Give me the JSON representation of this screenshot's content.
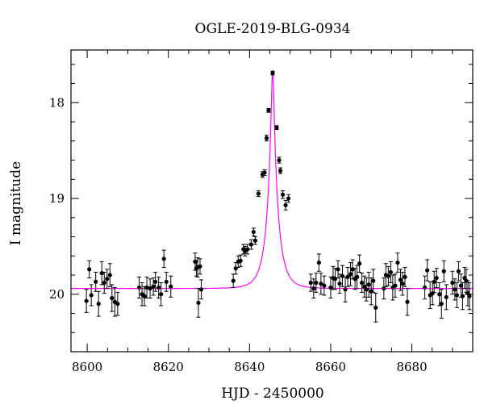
{
  "chart_data": {
    "type": "scatter",
    "title": "OGLE-2019-BLG-0934",
    "xlabel": "HJD - 2450000",
    "ylabel": "I magnitude",
    "xlim": [
      8596,
      8695
    ],
    "ylim": [
      20.6,
      17.45
    ],
    "y_inverted": true,
    "grid": false,
    "x_ticks": [
      8600,
      8620,
      8640,
      8660,
      8680
    ],
    "y_ticks": [
      18,
      19,
      20
    ],
    "colors": {
      "points": "#000000",
      "model": "#ff00ff",
      "axes": "#000000"
    },
    "model": {
      "t0": 8645.7,
      "peak_mag": 17.68,
      "baseline_mag": 19.94,
      "tE": 2.7
    },
    "series": [
      {
        "type": "scatter_errorbars",
        "x": [
          8599.8,
          8600.5,
          8601.0,
          8602.1,
          8602.8,
          8603.6,
          8604.2,
          8604.9,
          8605.6,
          8606.1,
          8606.8,
          8607.5,
          8612.8,
          8613.5,
          8614.1,
          8614.7,
          8615.5,
          8616.3,
          8616.8,
          8617.6,
          8618.2,
          8618.9,
          8619.5,
          8620.6,
          8626.6,
          8626.9,
          8627.2,
          8627.4,
          8627.8,
          8628.1,
          8636.0,
          8636.6,
          8637.2,
          8637.8,
          8638.5,
          8638.9,
          8639.5,
          8640.4,
          8641.0,
          8641.4,
          8642.2,
          8643.2,
          8643.7,
          8644.2,
          8644.7,
          8645.7,
          8646.7,
          8647.3,
          8647.6,
          8648.2,
          8648.9,
          8649.6,
          8655.1,
          8655.8,
          8656.4,
          8657.1,
          8657.6,
          8658.4,
          8660.0,
          8660.6,
          8661.1,
          8661.8,
          8662.2,
          8662.9,
          8663.6,
          8664.2,
          8664.9,
          8665.4,
          8666.0,
          8666.5,
          8667.1,
          8667.7,
          8668.3,
          8668.8,
          8669.4,
          8670.0,
          8670.5,
          8671.1,
          8673.1,
          8673.6,
          8674.2,
          8674.8,
          8675.3,
          8675.9,
          8676.5,
          8677.2,
          8677.7,
          8678.3,
          8678.9,
          8683.2,
          8683.8,
          8684.5,
          8685.1,
          8685.5,
          8686.1,
          8686.8,
          8687.3,
          8687.9,
          8688.5,
          8690.0,
          8690.6,
          8691.1,
          8691.5,
          8692.1,
          8692.5,
          8693.0,
          8693.4,
          8693.8,
          8694.2
        ],
        "y": [
          20.07,
          19.74,
          20.01,
          19.87,
          20.1,
          19.78,
          19.88,
          19.84,
          19.8,
          20.04,
          20.08,
          20.1,
          19.93,
          20.0,
          20.02,
          19.93,
          19.94,
          19.92,
          19.87,
          19.93,
          20.0,
          19.63,
          19.87,
          19.92,
          19.66,
          19.73,
          19.72,
          20.09,
          19.71,
          19.95,
          19.86,
          19.73,
          19.66,
          19.65,
          19.53,
          19.55,
          19.53,
          19.48,
          19.35,
          19.44,
          18.95,
          18.75,
          18.73,
          18.37,
          18.08,
          17.69,
          18.26,
          18.6,
          18.71,
          18.96,
          19.07,
          19.0,
          19.88,
          19.94,
          19.88,
          19.67,
          19.89,
          19.91,
          19.93,
          19.83,
          19.84,
          19.74,
          19.89,
          19.81,
          19.95,
          19.82,
          19.79,
          19.74,
          19.84,
          19.82,
          19.68,
          19.88,
          19.92,
          19.95,
          19.9,
          19.97,
          19.86,
          20.14,
          19.94,
          19.8,
          19.81,
          19.77,
          19.93,
          19.91,
          19.67,
          19.85,
          19.89,
          19.82,
          20.08,
          19.93,
          19.75,
          20.01,
          19.99,
          19.87,
          19.83,
          20.0,
          20.1,
          19.76,
          20.03,
          19.88,
          19.95,
          20.01,
          19.76,
          19.91,
          20.02,
          19.83,
          19.86,
          19.99,
          20.02
        ],
        "err": [
          0.12,
          0.09,
          0.11,
          0.1,
          0.13,
          0.12,
          0.11,
          0.1,
          0.12,
          0.14,
          0.15,
          0.12,
          0.11,
          0.12,
          0.1,
          0.11,
          0.1,
          0.09,
          0.1,
          0.11,
          0.12,
          0.09,
          0.1,
          0.11,
          0.09,
          0.08,
          0.1,
          0.15,
          0.08,
          0.1,
          0.07,
          0.06,
          0.06,
          0.06,
          0.05,
          0.05,
          0.05,
          0.05,
          0.04,
          0.04,
          0.03,
          0.03,
          0.03,
          0.03,
          0.02,
          0.02,
          0.02,
          0.03,
          0.03,
          0.04,
          0.05,
          0.04,
          0.09,
          0.1,
          0.1,
          0.09,
          0.11,
          0.1,
          0.11,
          0.12,
          0.11,
          0.09,
          0.1,
          0.11,
          0.13,
          0.1,
          0.12,
          0.1,
          0.11,
          0.12,
          0.09,
          0.1,
          0.11,
          0.12,
          0.13,
          0.14,
          0.12,
          0.15,
          0.11,
          0.12,
          0.1,
          0.11,
          0.13,
          0.12,
          0.1,
          0.11,
          0.12,
          0.1,
          0.14,
          0.12,
          0.11,
          0.14,
          0.12,
          0.11,
          0.1,
          0.12,
          0.15,
          0.11,
          0.13,
          0.12,
          0.11,
          0.13,
          0.1,
          0.12,
          0.14,
          0.11,
          0.12,
          0.13,
          0.14
        ]
      }
    ]
  }
}
